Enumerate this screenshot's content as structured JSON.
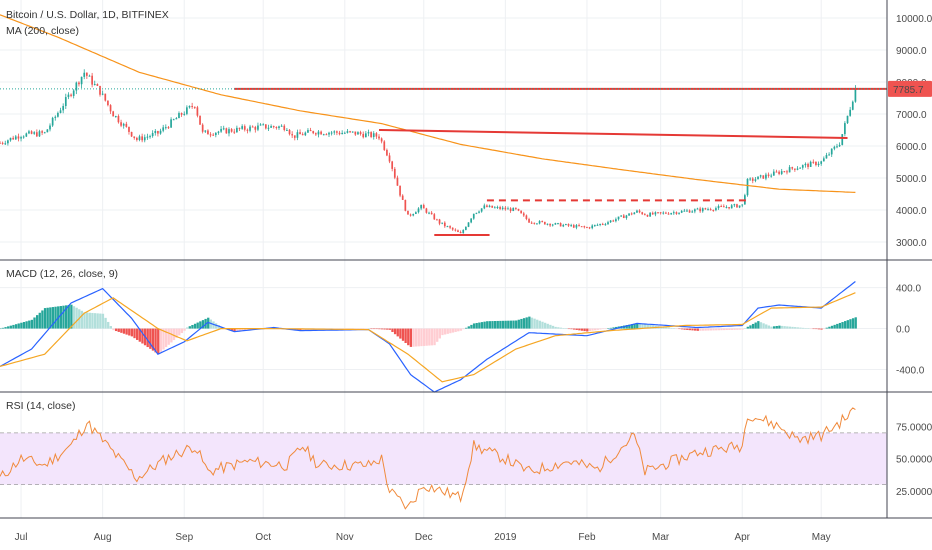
{
  "header": {
    "title": "Bitcoin / U.S. Dollar, 1D, BITFINEX",
    "ma_label": "MA (200, close)",
    "macd_label": "MACD (12, 26, close, 9)",
    "rsi_label": "RSI (14, close)"
  },
  "price_badge": "7785.7",
  "colors": {
    "up": "#26a69a",
    "down": "#ef5350",
    "ma": "#f7931a",
    "macd": "#2962ff",
    "signal": "#f5a623",
    "rsi": "#f08a3c",
    "rsi_band": "#f3e5fc",
    "trendline": "#e53935",
    "badge_bg": "#ef5350"
  },
  "chart_data": [
    {
      "type": "candlestick",
      "name": "Bitcoin / U.S. Dollar",
      "y_ticks": [
        "10000.0",
        "9000.0",
        "8000.0",
        "7000.0",
        "6000.0",
        "5000.0",
        "4000.0",
        "3000.0"
      ],
      "ylim": [
        2500,
        10500
      ],
      "x_labels": [
        "Jul",
        "Aug",
        "Sep",
        "Oct",
        "Nov",
        "Dec",
        "2019",
        "Feb",
        "Mar",
        "Apr",
        "May"
      ],
      "x_dates": [
        "2018-07-01",
        "2018-08-01",
        "2018-09-01",
        "2018-10-01",
        "2018-11-01",
        "2018-12-01",
        "2019-01-01",
        "2019-02-01",
        "2019-03-01",
        "2019-04-01",
        "2019-05-01"
      ],
      "x_range": [
        "2018-06-23",
        "2019-05-26"
      ],
      "close_path": [
        [
          "2018-06-23",
          6100
        ],
        [
          "2018-07-01",
          6350
        ],
        [
          "2018-07-10",
          6400
        ],
        [
          "2018-07-17",
          7300
        ],
        [
          "2018-07-25",
          8300
        ],
        [
          "2018-07-31",
          7700
        ],
        [
          "2018-08-05",
          7000
        ],
        [
          "2018-08-14",
          6200
        ],
        [
          "2018-08-22",
          6400
        ],
        [
          "2018-08-31",
          7000
        ],
        [
          "2018-09-05",
          7300
        ],
        [
          "2018-09-08",
          6400
        ],
        [
          "2018-09-20",
          6500
        ],
        [
          "2018-09-30",
          6600
        ],
        [
          "2018-10-10",
          6600
        ],
        [
          "2018-10-12",
          6300
        ],
        [
          "2018-10-20",
          6450
        ],
        [
          "2018-11-05",
          6400
        ],
        [
          "2018-11-14",
          6300
        ],
        [
          "2018-11-18",
          5600
        ],
        [
          "2018-11-22",
          4500
        ],
        [
          "2018-11-25",
          3800
        ],
        [
          "2018-11-30",
          4100
        ],
        [
          "2018-12-07",
          3600
        ],
        [
          "2018-12-15",
          3250
        ],
        [
          "2018-12-20",
          3900
        ],
        [
          "2018-12-24",
          4100
        ],
        [
          "2019-01-05",
          4000
        ],
        [
          "2019-01-10",
          3650
        ],
        [
          "2019-01-20",
          3550
        ],
        [
          "2019-02-01",
          3450
        ],
        [
          "2019-02-08",
          3600
        ],
        [
          "2019-02-20",
          3950
        ],
        [
          "2019-02-24",
          3850
        ],
        [
          "2019-03-15",
          4000
        ],
        [
          "2019-04-01",
          4150
        ],
        [
          "2019-04-03",
          4900
        ],
        [
          "2019-04-20",
          5300
        ],
        [
          "2019-05-01",
          5500
        ],
        [
          "2019-05-08",
          6100
        ],
        [
          "2019-05-12",
          7200
        ],
        [
          "2019-05-14",
          7785
        ]
      ],
      "ma200_path": [
        [
          "2018-06-23",
          10100
        ],
        [
          "2018-07-15",
          9400
        ],
        [
          "2018-08-15",
          8300
        ],
        [
          "2018-09-15",
          7600
        ],
        [
          "2018-10-15",
          7100
        ],
        [
          "2018-11-15",
          6700
        ],
        [
          "2018-12-15",
          6050
        ],
        [
          "2019-01-15",
          5600
        ],
        [
          "2019-02-15",
          5250
        ],
        [
          "2019-03-15",
          4950
        ],
        [
          "2019-04-15",
          4650
        ],
        [
          "2019-05-14",
          4550
        ]
      ],
      "annotations": [
        {
          "type": "horizontal",
          "from": "2018-09-20",
          "to": "2019-05-26",
          "value": 7785.7,
          "color": "#e53935"
        },
        {
          "type": "trendline",
          "from": "2018-11-14",
          "to": "2019-05-11",
          "value": [
            6500,
            6250
          ],
          "color": "#e53935"
        },
        {
          "type": "horizontal-dashed",
          "from": "2018-12-25",
          "to": "2019-04-03",
          "value": 4300,
          "color": "#e53935"
        },
        {
          "type": "horizontal",
          "from": "2018-12-05",
          "to": "2018-12-26",
          "value": 3220,
          "color": "#e53935"
        }
      ],
      "last_price": 7785.7
    },
    {
      "type": "macd",
      "y_ticks": [
        "400.0",
        "0.0",
        "-400.0"
      ],
      "ylim": [
        -600,
        650
      ],
      "macd_path": [
        [
          "2018-06-23",
          -370
        ],
        [
          "2018-07-05",
          -200
        ],
        [
          "2018-07-20",
          250
        ],
        [
          "2018-08-01",
          390
        ],
        [
          "2018-08-12",
          100
        ],
        [
          "2018-08-22",
          -250
        ],
        [
          "2018-09-01",
          -130
        ],
        [
          "2018-09-10",
          60
        ],
        [
          "2018-09-20",
          -30
        ],
        [
          "2018-10-05",
          10
        ],
        [
          "2018-10-15",
          -20
        ],
        [
          "2018-11-10",
          -10
        ],
        [
          "2018-11-18",
          -150
        ],
        [
          "2018-11-26",
          -450
        ],
        [
          "2018-12-05",
          -620
        ],
        [
          "2018-12-15",
          -500
        ],
        [
          "2018-12-25",
          -300
        ],
        [
          "2019-01-10",
          -40
        ],
        [
          "2019-02-01",
          -70
        ],
        [
          "2019-02-20",
          50
        ],
        [
          "2019-03-15",
          10
        ],
        [
          "2019-04-01",
          30
        ],
        [
          "2019-04-07",
          200
        ],
        [
          "2019-04-15",
          230
        ],
        [
          "2019-05-01",
          200
        ],
        [
          "2019-05-14",
          460
        ]
      ],
      "signal_path": [
        [
          "2018-06-23",
          -370
        ],
        [
          "2018-07-10",
          -250
        ],
        [
          "2018-07-25",
          150
        ],
        [
          "2018-08-05",
          300
        ],
        [
          "2018-08-22",
          0
        ],
        [
          "2018-09-02",
          -120
        ],
        [
          "2018-09-15",
          0
        ],
        [
          "2018-10-01",
          0
        ],
        [
          "2018-11-10",
          -10
        ],
        [
          "2018-11-25",
          -250
        ],
        [
          "2018-12-08",
          -520
        ],
        [
          "2018-12-20",
          -450
        ],
        [
          "2019-01-05",
          -200
        ],
        [
          "2019-01-20",
          -70
        ],
        [
          "2019-02-10",
          -20
        ],
        [
          "2019-03-10",
          30
        ],
        [
          "2019-04-01",
          40
        ],
        [
          "2019-04-12",
          200
        ],
        [
          "2019-05-01",
          210
        ],
        [
          "2019-05-14",
          350
        ]
      ]
    },
    {
      "type": "rsi",
      "y_ticks": [
        "75.0000",
        "50.0000",
        "25.0000"
      ],
      "ylim": [
        5,
        100
      ],
      "band": [
        30,
        70
      ],
      "rsi_path": [
        [
          "2018-06-23",
          35
        ],
        [
          "2018-07-01",
          50
        ],
        [
          "2018-07-10",
          45
        ],
        [
          "2018-07-20",
          60
        ],
        [
          "2018-07-26",
          78
        ],
        [
          "2018-08-05",
          55
        ],
        [
          "2018-08-14",
          35
        ],
        [
          "2018-08-25",
          50
        ],
        [
          "2018-09-05",
          60
        ],
        [
          "2018-09-10",
          40
        ],
        [
          "2018-09-25",
          48
        ],
        [
          "2018-10-10",
          45
        ],
        [
          "2018-10-16",
          60
        ],
        [
          "2018-10-22",
          45
        ],
        [
          "2018-11-10",
          45
        ],
        [
          "2018-11-15",
          50
        ],
        [
          "2018-11-18",
          25
        ],
        [
          "2018-11-25",
          12
        ],
        [
          "2018-12-01",
          30
        ],
        [
          "2018-12-08",
          25
        ],
        [
          "2018-12-15",
          20
        ],
        [
          "2018-12-20",
          60
        ],
        [
          "2019-01-01",
          50
        ],
        [
          "2019-01-10",
          40
        ],
        [
          "2019-01-25",
          48
        ],
        [
          "2019-02-05",
          42
        ],
        [
          "2019-02-19",
          68
        ],
        [
          "2019-02-23",
          40
        ],
        [
          "2019-03-15",
          55
        ],
        [
          "2019-04-01",
          60
        ],
        [
          "2019-04-03",
          85
        ],
        [
          "2019-04-15",
          75
        ],
        [
          "2019-04-22",
          65
        ],
        [
          "2019-05-01",
          68
        ],
        [
          "2019-05-08",
          78
        ],
        [
          "2019-05-14",
          88
        ]
      ]
    }
  ]
}
